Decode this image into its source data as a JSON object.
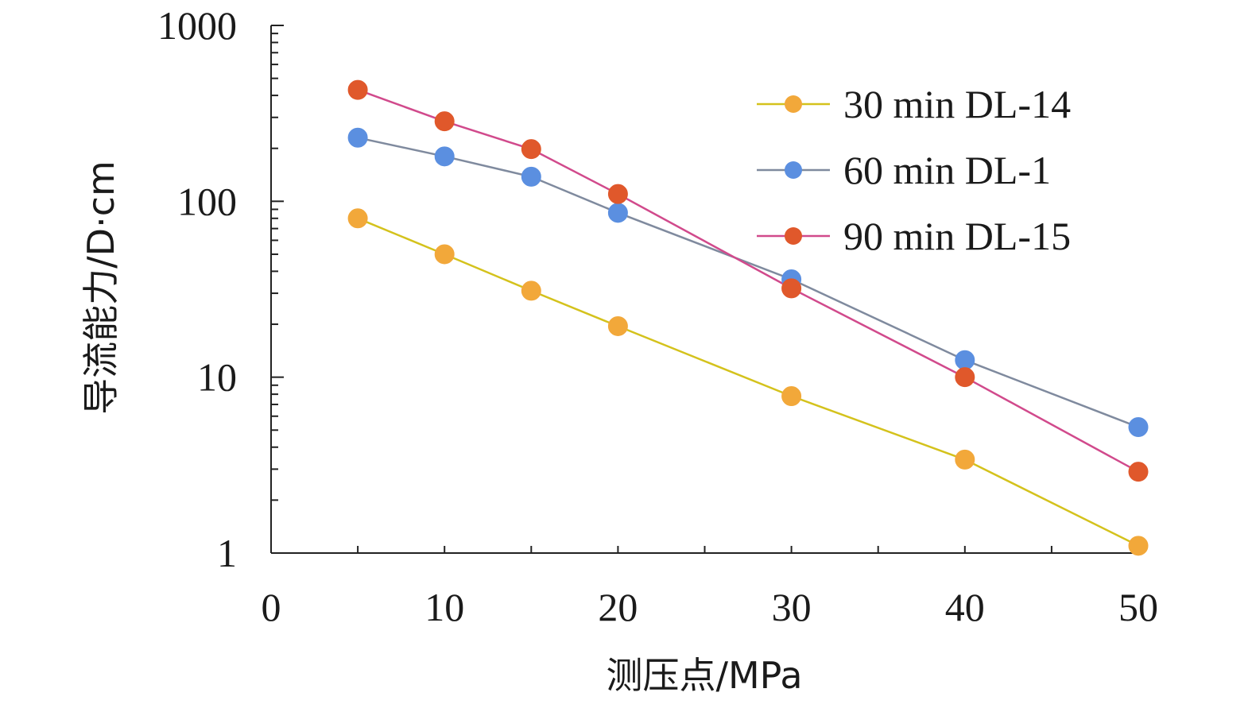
{
  "chart_data": {
    "type": "line",
    "xlabel": "测压点/MPa",
    "ylabel": "导流能力/D·cm",
    "xlim": [
      0,
      50
    ],
    "ylim": [
      1,
      1000
    ],
    "y_scale": "log",
    "grid": false,
    "legend_position": "top-right",
    "x_ticks": [
      "0",
      "10",
      "20",
      "30",
      "40",
      "50"
    ],
    "y_ticks": [
      "1",
      "10",
      "100",
      "1000"
    ],
    "x": [
      5,
      10,
      15,
      20,
      30,
      40,
      50
    ],
    "series": [
      {
        "name": "30 min DL-14",
        "line_color": "#d4c21c",
        "marker_color": "#f2a83a",
        "values": [
          80,
          50,
          31,
          19.5,
          7.8,
          3.4,
          1.1
        ]
      },
      {
        "name": "60 min DL-1",
        "line_color": "#7f8a9e",
        "marker_color": "#5b8fe0",
        "values": [
          230,
          180,
          138,
          86,
          36,
          12.5,
          5.2
        ]
      },
      {
        "name": "90 min DL-15",
        "line_color": "#d14a8c",
        "marker_color": "#e0582b",
        "values": [
          430,
          285,
          198,
          110,
          32,
          10,
          2.9
        ]
      }
    ]
  }
}
